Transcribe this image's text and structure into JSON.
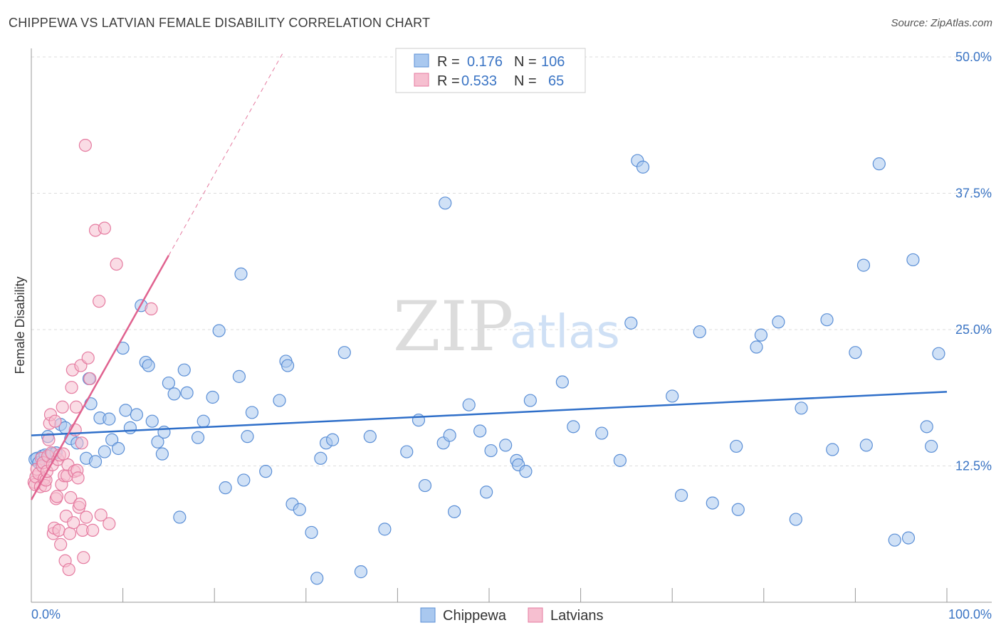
{
  "title": "CHIPPEWA VS LATVIAN FEMALE DISABILITY CORRELATION CHART",
  "source": "Source: ZipAtlas.com",
  "watermark": {
    "part1": "ZIP",
    "part2": "atlas"
  },
  "colors": {
    "chippewa_fill": "#a9c8ef",
    "chippewa_stroke": "#5b8fd6",
    "chippewa_line": "#2f6fc9",
    "latvians_fill": "#f6bfd0",
    "latvians_stroke": "#e57ba0",
    "latvians_line": "#e0628f",
    "axis_label": "#3a74c4",
    "grid": "#dddddd"
  },
  "legend_top": {
    "rows": [
      {
        "r_label": "R =",
        "r_value": "0.176",
        "n_label": "N =",
        "n_value": "106"
      },
      {
        "r_label": "R =",
        "r_value": "0.533",
        "n_label": "N =",
        "n_value": "65"
      }
    ]
  },
  "chart_data": {
    "type": "scatter",
    "title": "CHIPPEWA VS LATVIAN FEMALE DISABILITY CORRELATION CHART",
    "xlabel": "",
    "ylabel": "Female Disability",
    "xlim": [
      0,
      100
    ],
    "ylim": [
      0,
      50
    ],
    "x_tick_labels": [
      "0.0%",
      "100.0%"
    ],
    "y_ticks": [
      12.5,
      25.0,
      37.5,
      50.0
    ],
    "y_tick_labels": [
      "12.5%",
      "25.0%",
      "37.5%",
      "50.0%"
    ],
    "legend": [
      "Chippewa",
      "Latvians"
    ],
    "series": [
      {
        "name": "Chippewa",
        "r": 0.176,
        "n": 106,
        "trend": {
          "x0": 0,
          "y0": 15.3,
          "x1": 100,
          "y1": 19.3
        },
        "points": [
          [
            0.4,
            13.1
          ],
          [
            0.6,
            13.2
          ],
          [
            0.8,
            12.8
          ],
          [
            1.2,
            13.4
          ],
          [
            1.5,
            13.5
          ],
          [
            1.8,
            15.2
          ],
          [
            2.0,
            13.4
          ],
          [
            2.3,
            13.6
          ],
          [
            2.7,
            13.7
          ],
          [
            3.2,
            16.3
          ],
          [
            3.7,
            16.0
          ],
          [
            4.3,
            15.0
          ],
          [
            5.0,
            14.6
          ],
          [
            6.0,
            13.2
          ],
          [
            6.3,
            20.5
          ],
          [
            6.5,
            18.2
          ],
          [
            7.0,
            12.9
          ],
          [
            7.5,
            16.9
          ],
          [
            8.0,
            13.8
          ],
          [
            8.5,
            16.8
          ],
          [
            8.8,
            14.9
          ],
          [
            9.5,
            14.1
          ],
          [
            10.0,
            23.3
          ],
          [
            10.3,
            17.6
          ],
          [
            10.8,
            16.0
          ],
          [
            11.5,
            17.2
          ],
          [
            12.0,
            27.2
          ],
          [
            12.5,
            22.0
          ],
          [
            12.8,
            21.7
          ],
          [
            13.2,
            16.6
          ],
          [
            13.8,
            14.7
          ],
          [
            14.3,
            13.6
          ],
          [
            14.5,
            15.6
          ],
          [
            15.0,
            20.1
          ],
          [
            15.6,
            19.1
          ],
          [
            16.2,
            7.8
          ],
          [
            16.7,
            21.3
          ],
          [
            17.0,
            19.2
          ],
          [
            18.2,
            15.1
          ],
          [
            18.8,
            16.6
          ],
          [
            19.8,
            18.8
          ],
          [
            20.5,
            24.9
          ],
          [
            21.2,
            10.5
          ],
          [
            22.7,
            20.7
          ],
          [
            22.9,
            30.1
          ],
          [
            23.2,
            11.2
          ],
          [
            23.6,
            15.2
          ],
          [
            24.1,
            17.4
          ],
          [
            25.6,
            12.0
          ],
          [
            27.1,
            18.5
          ],
          [
            27.8,
            22.1
          ],
          [
            28.0,
            21.7
          ],
          [
            28.5,
            9.0
          ],
          [
            29.3,
            8.5
          ],
          [
            30.6,
            6.4
          ],
          [
            31.2,
            2.2
          ],
          [
            31.6,
            13.2
          ],
          [
            32.2,
            14.6
          ],
          [
            32.9,
            14.9
          ],
          [
            34.2,
            22.9
          ],
          [
            36.0,
            2.8
          ],
          [
            37.0,
            15.2
          ],
          [
            38.6,
            6.7
          ],
          [
            41.0,
            13.8
          ],
          [
            42.3,
            16.7
          ],
          [
            43.0,
            10.7
          ],
          [
            45.0,
            14.6
          ],
          [
            45.2,
            36.6
          ],
          [
            45.7,
            15.3
          ],
          [
            46.2,
            8.3
          ],
          [
            47.8,
            18.1
          ],
          [
            49.0,
            15.7
          ],
          [
            49.7,
            10.1
          ],
          [
            50.2,
            13.9
          ],
          [
            51.8,
            14.4
          ],
          [
            53.0,
            13.0
          ],
          [
            53.2,
            12.6
          ],
          [
            54.0,
            12.0
          ],
          [
            54.5,
            18.5
          ],
          [
            58.0,
            20.2
          ],
          [
            59.2,
            16.1
          ],
          [
            62.3,
            15.5
          ],
          [
            64.3,
            13.0
          ],
          [
            65.5,
            25.6
          ],
          [
            66.2,
            40.5
          ],
          [
            66.8,
            39.9
          ],
          [
            70.0,
            18.9
          ],
          [
            71.0,
            9.8
          ],
          [
            73.0,
            24.8
          ],
          [
            74.4,
            9.1
          ],
          [
            77.0,
            14.3
          ],
          [
            77.2,
            8.5
          ],
          [
            79.2,
            23.4
          ],
          [
            79.7,
            24.5
          ],
          [
            81.6,
            25.7
          ],
          [
            83.5,
            7.6
          ],
          [
            84.1,
            17.8
          ],
          [
            86.9,
            25.9
          ],
          [
            87.5,
            14.0
          ],
          [
            90.0,
            22.9
          ],
          [
            90.9,
            30.9
          ],
          [
            91.2,
            14.4
          ],
          [
            92.6,
            40.2
          ],
          [
            94.3,
            5.7
          ],
          [
            95.8,
            5.9
          ],
          [
            96.3,
            31.4
          ],
          [
            97.8,
            16.1
          ],
          [
            98.3,
            14.3
          ],
          [
            99.1,
            22.8
          ]
        ]
      },
      {
        "name": "Latvians",
        "r": 0.533,
        "n": 65,
        "trend": {
          "x0": 0,
          "y0": 9.4,
          "x1": 15,
          "y1": 31.8
        },
        "trend_extension": {
          "x0": 15,
          "y0": 31.8,
          "x1": 27.5,
          "y1": 50.4
        },
        "points": [
          [
            0.3,
            11.0
          ],
          [
            0.4,
            10.8
          ],
          [
            0.5,
            11.5
          ],
          [
            0.6,
            12.2
          ],
          [
            0.8,
            11.8
          ],
          [
            1.0,
            10.6
          ],
          [
            1.1,
            13.2
          ],
          [
            1.2,
            12.5
          ],
          [
            1.3,
            12.8
          ],
          [
            1.4,
            11.3
          ],
          [
            1.5,
            10.7
          ],
          [
            1.6,
            11.2
          ],
          [
            1.7,
            12.0
          ],
          [
            1.8,
            13.4
          ],
          [
            1.9,
            14.9
          ],
          [
            2.0,
            16.4
          ],
          [
            2.1,
            17.2
          ],
          [
            2.2,
            13.7
          ],
          [
            2.3,
            12.6
          ],
          [
            2.4,
            6.3
          ],
          [
            2.5,
            6.8
          ],
          [
            2.6,
            16.6
          ],
          [
            2.7,
            9.5
          ],
          [
            2.8,
            9.7
          ],
          [
            2.9,
            13.1
          ],
          [
            3.0,
            6.6
          ],
          [
            3.1,
            13.5
          ],
          [
            3.2,
            5.3
          ],
          [
            3.3,
            10.8
          ],
          [
            3.4,
            17.9
          ],
          [
            3.5,
            13.6
          ],
          [
            3.6,
            11.6
          ],
          [
            3.7,
            3.8
          ],
          [
            3.8,
            7.9
          ],
          [
            3.9,
            11.6
          ],
          [
            4.0,
            12.6
          ],
          [
            4.1,
            3.0
          ],
          [
            4.2,
            6.3
          ],
          [
            4.3,
            9.6
          ],
          [
            4.4,
            19.7
          ],
          [
            4.5,
            21.3
          ],
          [
            4.6,
            7.3
          ],
          [
            4.7,
            12.0
          ],
          [
            4.8,
            15.8
          ],
          [
            4.9,
            17.9
          ],
          [
            5.0,
            12.1
          ],
          [
            5.1,
            11.4
          ],
          [
            5.2,
            8.7
          ],
          [
            5.3,
            9.0
          ],
          [
            5.4,
            21.7
          ],
          [
            5.5,
            14.6
          ],
          [
            5.6,
            6.6
          ],
          [
            5.7,
            4.1
          ],
          [
            5.9,
            41.9
          ],
          [
            6.0,
            7.8
          ],
          [
            6.2,
            22.4
          ],
          [
            6.4,
            20.5
          ],
          [
            6.7,
            6.6
          ],
          [
            7.0,
            34.1
          ],
          [
            7.4,
            27.6
          ],
          [
            7.6,
            8.0
          ],
          [
            8.0,
            34.3
          ],
          [
            8.5,
            7.2
          ],
          [
            9.3,
            31.0
          ],
          [
            13.1,
            26.9
          ]
        ]
      }
    ]
  }
}
